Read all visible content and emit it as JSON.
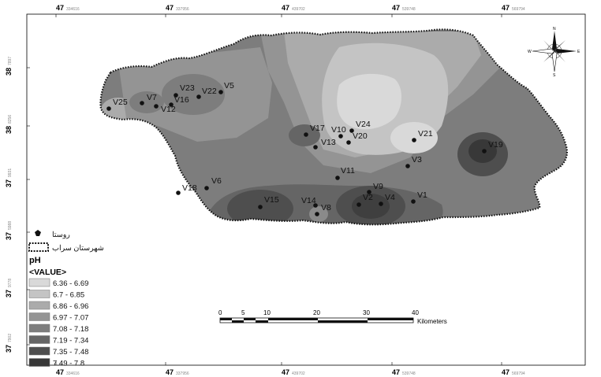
{
  "map": {
    "grid_top_labels": [
      "47",
      "47",
      "47",
      "47",
      "47"
    ],
    "grid_top_small": [
      "334616",
      "337956",
      "439702",
      "539748",
      "569794"
    ],
    "grid_bottom_labels": [
      "47",
      "47",
      "47",
      "47",
      "47"
    ],
    "grid_bottom_small": [
      "334616",
      "337956",
      "439702",
      "539748",
      "569794"
    ],
    "grid_left_labels": [
      "38",
      "38",
      "37",
      "37",
      "37",
      "37"
    ],
    "grid_left_small": [
      "7897",
      "8256",
      "9931",
      "5988",
      "9778",
      "7902"
    ],
    "villages": [
      {
        "id": "V25"
      },
      {
        "id": "V7"
      },
      {
        "id": "V12"
      },
      {
        "id": "V16"
      },
      {
        "id": "V23"
      },
      {
        "id": "V22"
      },
      {
        "id": "V5"
      },
      {
        "id": "V17"
      },
      {
        "id": "V10"
      },
      {
        "id": "V24"
      },
      {
        "id": "V13"
      },
      {
        "id": "V20"
      },
      {
        "id": "V21"
      },
      {
        "id": "V19"
      },
      {
        "id": "V3"
      },
      {
        "id": "V11"
      },
      {
        "id": "V18"
      },
      {
        "id": "V6"
      },
      {
        "id": "V15"
      },
      {
        "id": "V14"
      },
      {
        "id": "V8"
      },
      {
        "id": "V9"
      },
      {
        "id": "V2"
      },
      {
        "id": "V4"
      },
      {
        "id": "V1"
      }
    ]
  },
  "legend": {
    "village_label": "روستا",
    "county_label": "شهرستان سراب",
    "title": "pH",
    "value_header": "<VALUE>",
    "classes": [
      {
        "label": "6.36 - 6.69",
        "color": "#d9d9d9"
      },
      {
        "label": "6.7 - 6.85",
        "color": "#c4c4c4"
      },
      {
        "label": "6.86 - 6.96",
        "color": "#ababab"
      },
      {
        "label": "6.97 - 7.07",
        "color": "#949494"
      },
      {
        "label": "7.08 - 7.18",
        "color": "#7d7d7d"
      },
      {
        "label": "7.19 - 7.34",
        "color": "#656565"
      },
      {
        "label": "7.35 - 7.48",
        "color": "#4e4e4e"
      },
      {
        "label": "7.49 - 7.8",
        "color": "#383838"
      }
    ]
  },
  "scalebar": {
    "ticks": [
      "0",
      "5",
      "10",
      "20",
      "30",
      "40"
    ],
    "unit": "Kilometers"
  },
  "north_arrow": {
    "n": "N",
    "s": "S",
    "e": "E",
    "w": "W"
  }
}
